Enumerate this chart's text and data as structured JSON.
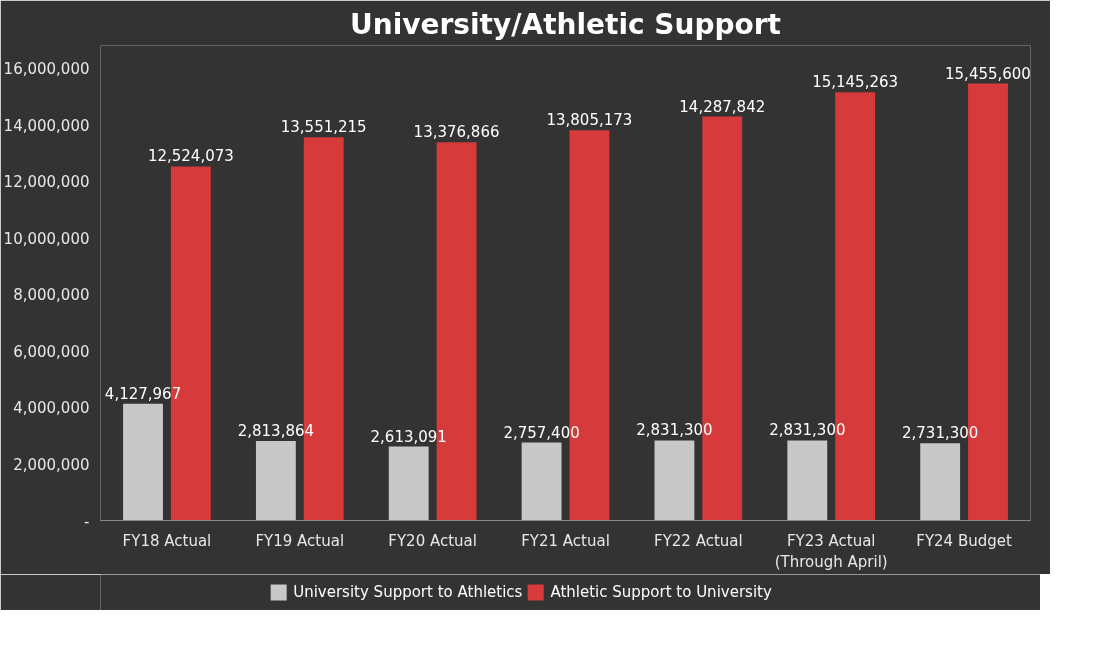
{
  "chart_data": {
    "type": "bar",
    "title": "University/Athletic Support",
    "categories": [
      "FY18 Actual",
      "FY19 Actual",
      "FY20 Actual",
      "FY21 Actual",
      "FY22 Actual",
      "FY23 Actual\n(Through April)",
      "FY24 Budget"
    ],
    "series": [
      {
        "name": "University Support to Athletics",
        "color": "#c8c8c8",
        "values": [
          4127967,
          2813864,
          2613091,
          2757400,
          2831300,
          2831300,
          2731300
        ],
        "value_labels": [
          "4,127,967",
          "2,813,864",
          "2,613,091",
          "2,757,400",
          "2,831,300",
          "2,831,300",
          "2,731,300"
        ]
      },
      {
        "name": "Athletic Support to University",
        "color": "#d63a3a",
        "values": [
          12524073,
          13551215,
          13376866,
          13805173,
          14287842,
          15145263,
          15455600
        ],
        "value_labels": [
          "12,524,073",
          "13,551,215",
          "13,376,866",
          "13,805,173",
          "14,287,842",
          "15,145,263",
          "15,455,600"
        ]
      }
    ],
    "ylim": [
      0,
      16800000
    ],
    "yticks": [
      {
        "value": 0,
        "label": "-"
      },
      {
        "value": 2000000,
        "label": "2,000,000"
      },
      {
        "value": 4000000,
        "label": "4,000,000"
      },
      {
        "value": 6000000,
        "label": "6,000,000"
      },
      {
        "value": 8000000,
        "label": "8,000,000"
      },
      {
        "value": 10000000,
        "label": "10,000,000"
      },
      {
        "value": 12000000,
        "label": "12,000,000"
      },
      {
        "value": 14000000,
        "label": "14,000,000"
      },
      {
        "value": 16000000,
        "label": "16,000,000"
      }
    ],
    "grid": false,
    "legend": "bottom"
  }
}
